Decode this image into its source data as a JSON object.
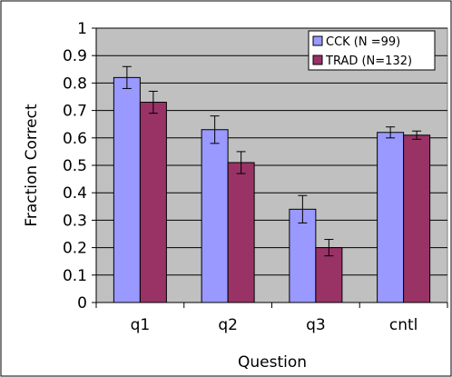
{
  "chart_data": {
    "type": "bar",
    "title": "",
    "xlabel": "Question",
    "ylabel": "Fraction Correct",
    "categories": [
      "q1",
      "q2",
      "q3",
      "cntl"
    ],
    "ylim": [
      0,
      1
    ],
    "yticks": [
      "0",
      "0.1",
      "0.2",
      "0.3",
      "0.4",
      "0.5",
      "0.6",
      "0.7",
      "0.8",
      "0.9",
      "1"
    ],
    "grid": true,
    "legend_position": "top-right",
    "series": [
      {
        "name": "CCK (N =99)",
        "color": "#9999ff",
        "values": [
          0.82,
          0.63,
          0.34,
          0.62
        ],
        "errors": [
          0.04,
          0.05,
          0.05,
          0.02
        ]
      },
      {
        "name": "TRAD (N=132)",
        "color": "#993366",
        "values": [
          0.73,
          0.51,
          0.2,
          0.61
        ],
        "errors": [
          0.04,
          0.04,
          0.03,
          0.015
        ]
      }
    ],
    "plot_background": "#c0c0c0"
  }
}
